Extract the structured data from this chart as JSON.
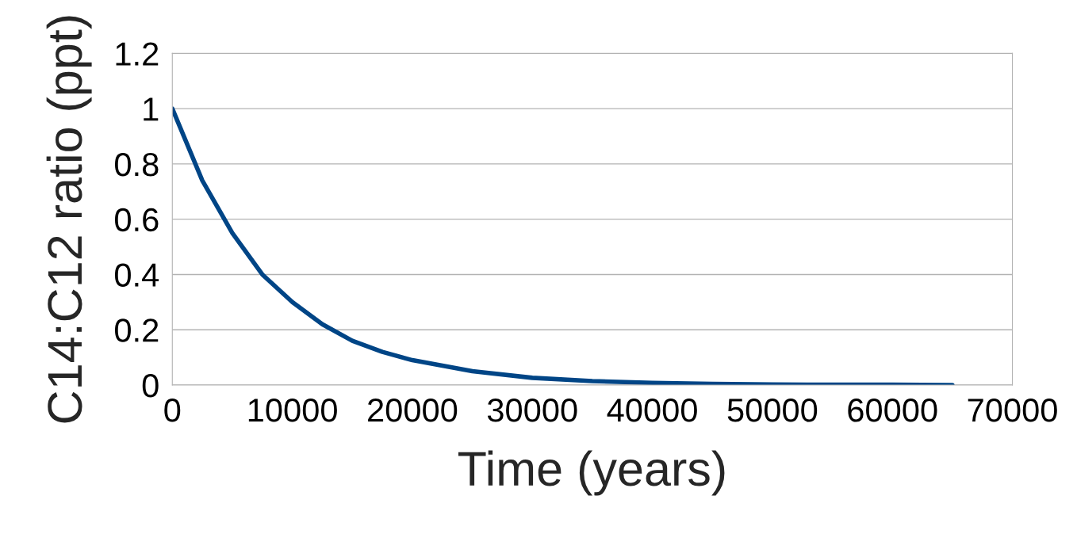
{
  "chart_data": {
    "type": "line",
    "xlabel": "Time (years)",
    "ylabel": "C14:C12 ratio (ppt)",
    "x": [
      0,
      2500,
      5000,
      7500,
      10000,
      12500,
      15000,
      17500,
      20000,
      25000,
      30000,
      35000,
      40000,
      45000,
      50000,
      55000,
      60000,
      65000
    ],
    "series": [
      {
        "color": "#004586",
        "values": [
          1,
          0.74,
          0.55,
          0.4,
          0.3,
          0.22,
          0.16,
          0.12,
          0.09,
          0.05,
          0.026,
          0.014,
          0.008,
          0.004,
          0.002,
          0.001,
          0.001,
          0
        ]
      }
    ],
    "xlim": [
      0,
      70000
    ],
    "xticks": [
      0,
      10000,
      20000,
      30000,
      40000,
      50000,
      60000,
      70000
    ],
    "ylim": [
      0,
      1.2
    ],
    "yticks": [
      0,
      {
        "value": 0.2,
        "label": "0.2"
      },
      {
        "value": 0.4,
        "label": "0.4"
      },
      {
        "value": 0.6,
        "label": "0.6"
      },
      {
        "value": 0.8,
        "label": "0.8"
      },
      1,
      {
        "value": 1.2,
        "label": "1.2"
      }
    ],
    "grid": "y",
    "legend": false,
    "marker": "none",
    "line_style": "solid"
  }
}
